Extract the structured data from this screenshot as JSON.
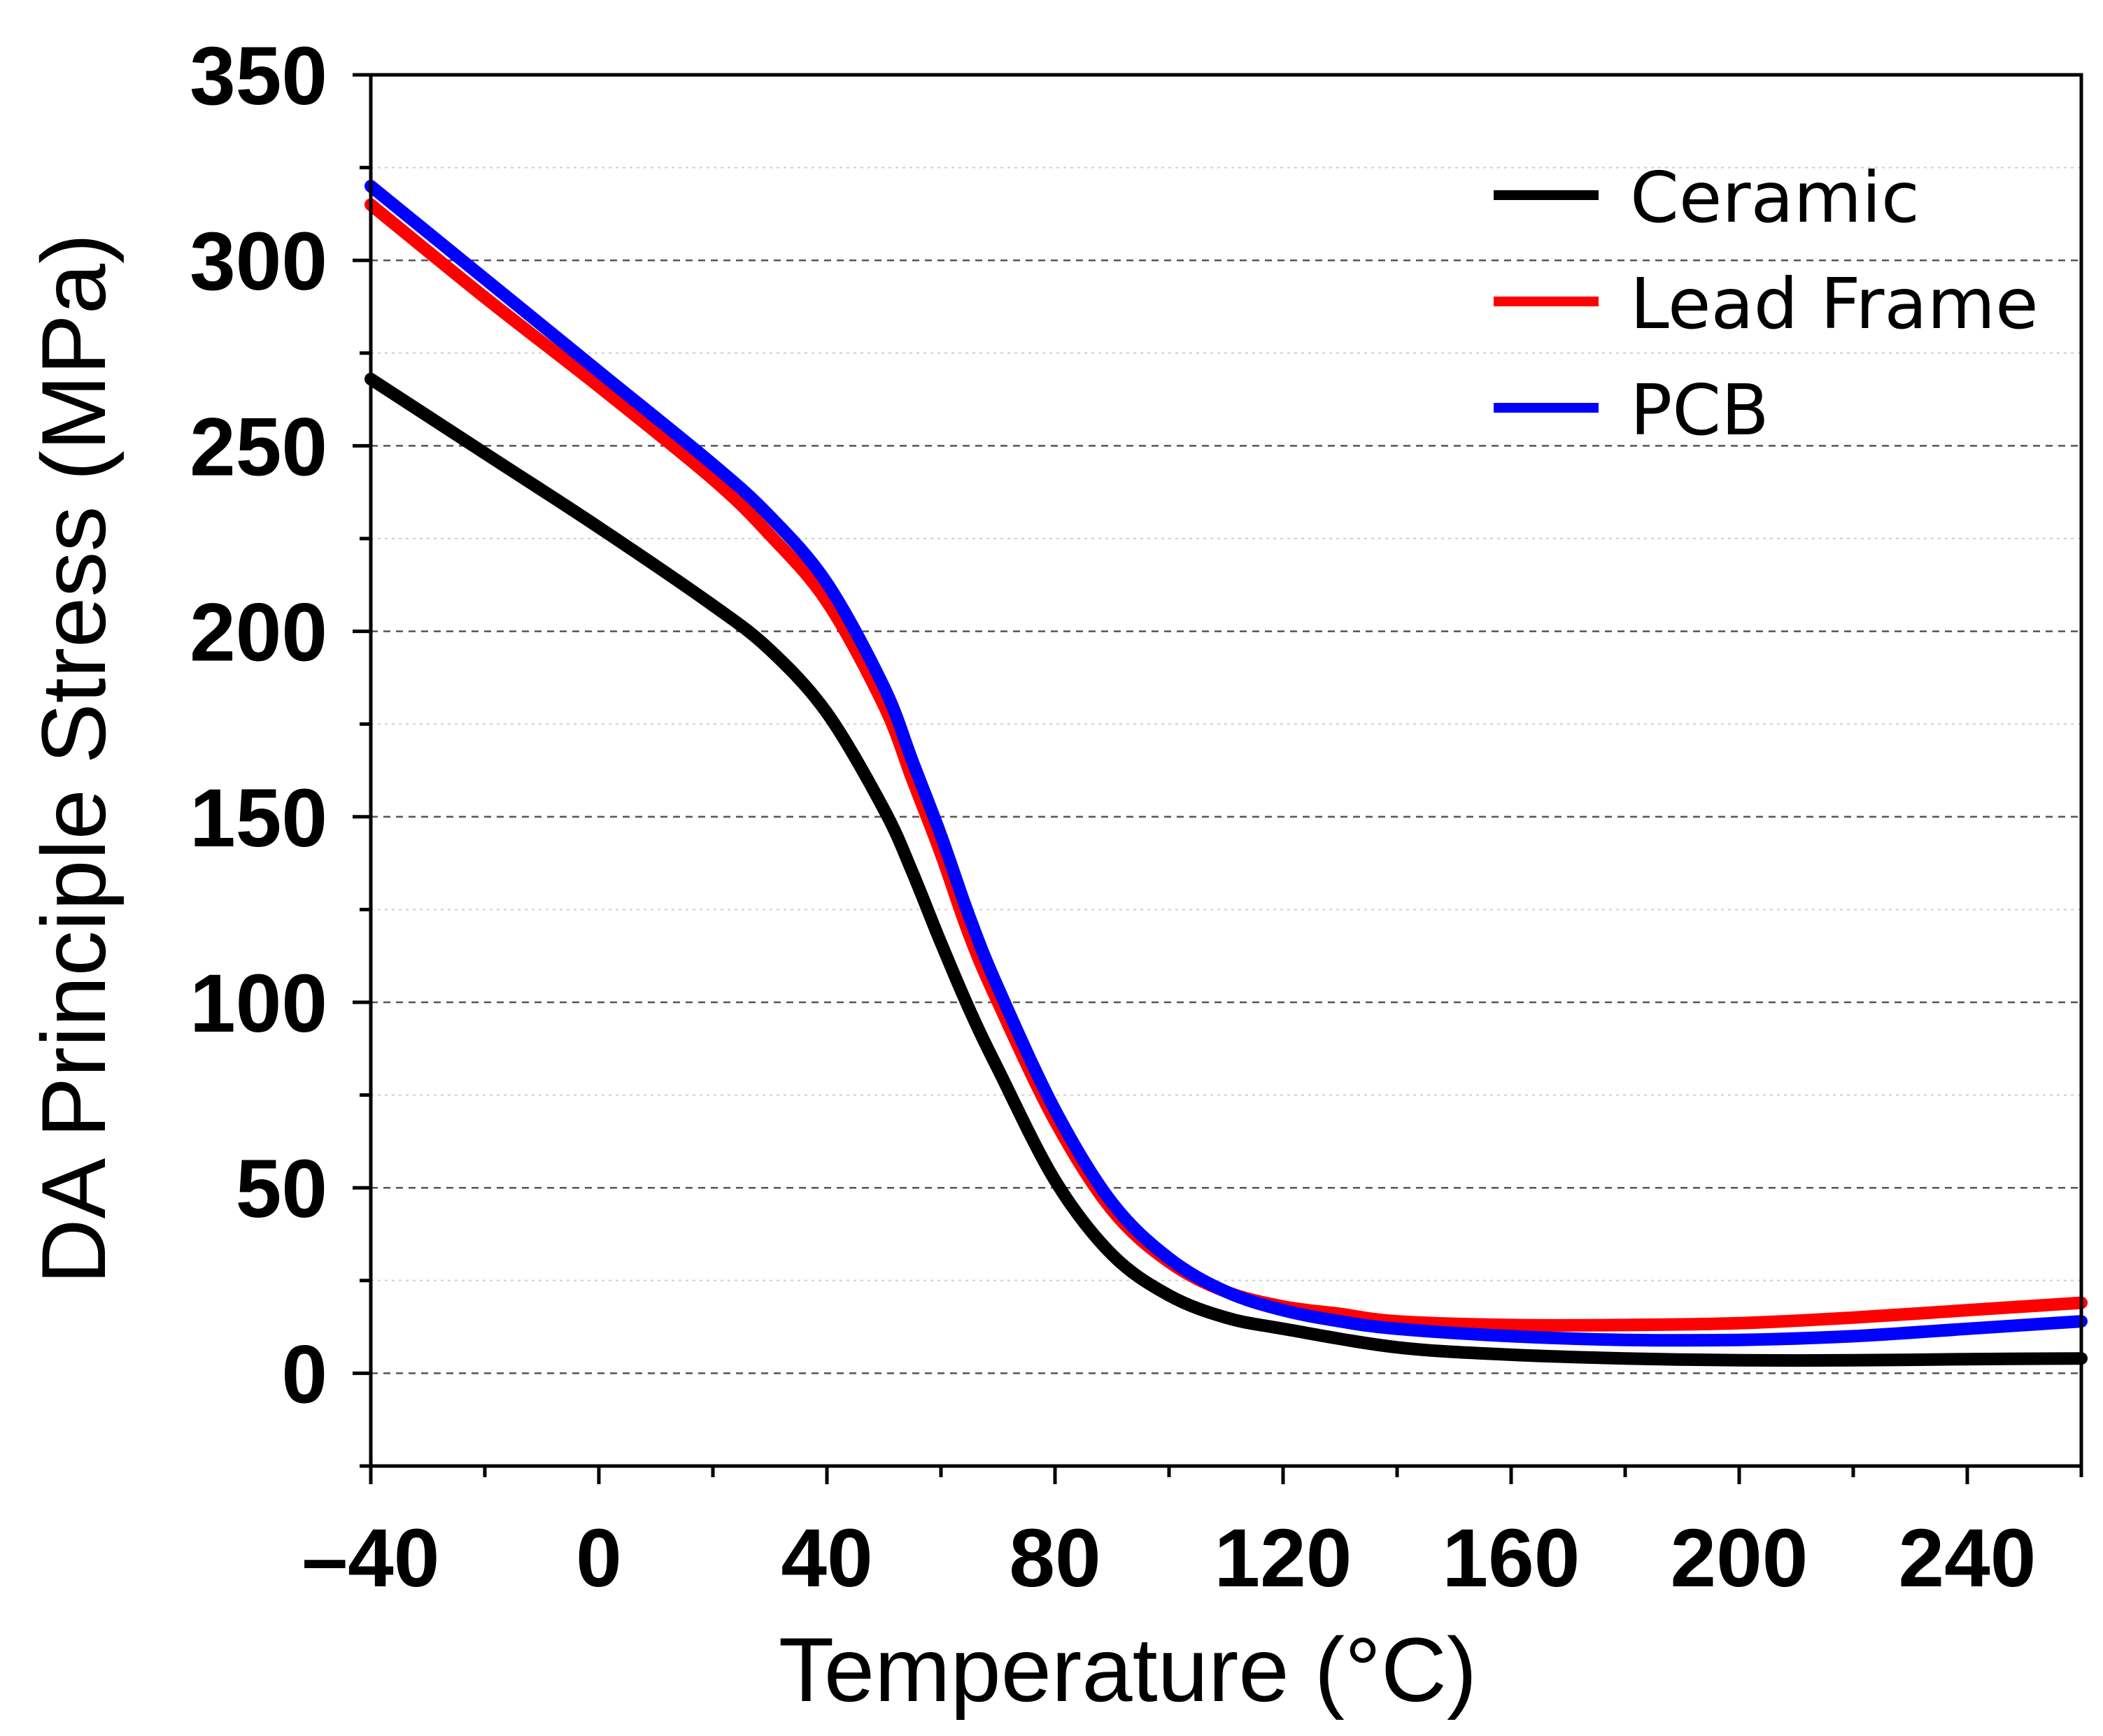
{
  "chart_data": {
    "type": "line",
    "title": "",
    "xlabel": "Temperature (°C)",
    "ylabel": "DA Principle Stress (MPa)",
    "xlim": [
      -40,
      260
    ],
    "ylim": [
      -25,
      350
    ],
    "x_ticks": [
      -40,
      0,
      40,
      80,
      120,
      160,
      200,
      240
    ],
    "x_tick_labels": [
      "–40",
      "0",
      "40",
      "80",
      "120",
      "160",
      "200",
      "240"
    ],
    "y_ticks": [
      0,
      50,
      100,
      150,
      200,
      250,
      300,
      350
    ],
    "y_tick_labels": [
      "0",
      "50",
      "100",
      "150",
      "200",
      "250",
      "300",
      "350"
    ],
    "grid": true,
    "legend_position": "top-right",
    "series": [
      {
        "name": "Ceramic",
        "color": "#000000",
        "x": [
          -40,
          -20,
          0,
          20,
          30,
          40,
          50,
          55,
          60,
          65,
          70,
          80,
          90,
          100,
          110,
          120,
          140,
          160,
          180,
          200,
          220,
          240,
          260
        ],
        "y": [
          268,
          248,
          228,
          207,
          195,
          178,
          152,
          135,
          116,
          98,
          82,
          52,
          32,
          21,
          15,
          12,
          7,
          5,
          4,
          3.5,
          3.5,
          3.8,
          4
        ]
      },
      {
        "name": "Lead Frame",
        "color": "#ff0000",
        "x": [
          -40,
          -20,
          0,
          20,
          30,
          40,
          50,
          55,
          60,
          65,
          70,
          80,
          90,
          100,
          110,
          120,
          130,
          140,
          160,
          180,
          200,
          220,
          240,
          260
        ],
        "y": [
          315,
          290,
          266,
          241,
          226,
          208,
          180,
          160,
          140,
          118,
          100,
          68,
          44,
          30,
          22,
          18,
          16,
          14,
          13,
          13,
          13.5,
          15,
          17,
          19
        ]
      },
      {
        "name": "PCB",
        "color": "#0000ff",
        "x": [
          -40,
          -20,
          0,
          20,
          30,
          40,
          50,
          55,
          60,
          65,
          70,
          80,
          90,
          100,
          110,
          120,
          130,
          140,
          160,
          180,
          200,
          220,
          240,
          260
        ],
        "y": [
          320,
          295,
          270,
          245,
          231,
          213,
          185,
          165,
          145,
          123,
          104,
          71,
          46,
          31,
          22,
          17,
          14,
          12,
          10,
          9,
          9,
          10,
          12,
          14
        ]
      }
    ]
  }
}
